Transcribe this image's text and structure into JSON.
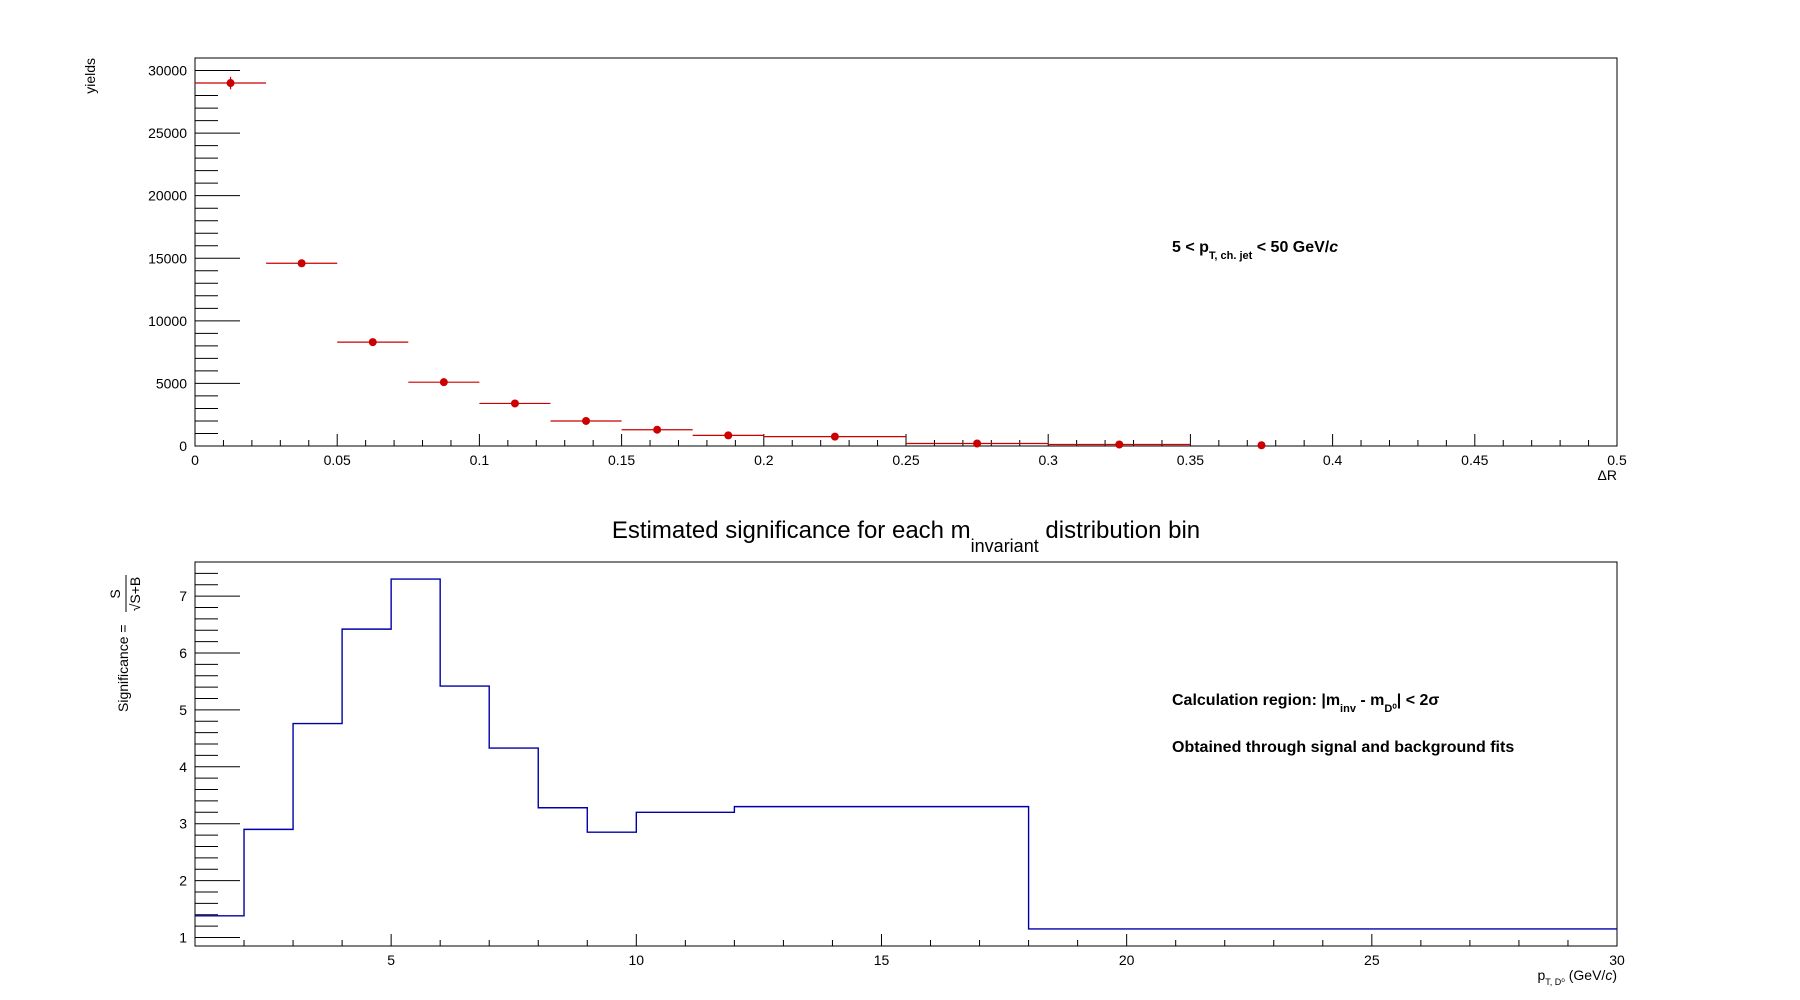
{
  "chart_data": [
    {
      "type": "scatter",
      "title": "",
      "xlabel": "ΔR",
      "ylabel": "yields",
      "xlim": [
        0,
        0.5
      ],
      "ylim": [
        0,
        31000
      ],
      "x_ticks": [
        "0",
        "0.05",
        "0.1",
        "0.15",
        "0.2",
        "0.25",
        "0.3",
        "0.35",
        "0.4",
        "0.45",
        "0.5"
      ],
      "y_ticks": [
        "0",
        "5000",
        "10000",
        "15000",
        "20000",
        "25000",
        "30000"
      ],
      "annotation": {
        "prefix": "5 < p",
        "sub": "T, ch. jet",
        "suffix": " < 50 GeV/",
        "italic": "c"
      },
      "color": "#cc0000",
      "points": [
        {
          "x": 0.0125,
          "y": 29000,
          "xerr": 0.0125,
          "yerr": 500
        },
        {
          "x": 0.0375,
          "y": 14600,
          "xerr": 0.0125,
          "yerr": 200
        },
        {
          "x": 0.0625,
          "y": 8300,
          "xerr": 0.0125,
          "yerr": 150
        },
        {
          "x": 0.0875,
          "y": 5100,
          "xerr": 0.0125,
          "yerr": 100
        },
        {
          "x": 0.1125,
          "y": 3400,
          "xerr": 0.0125,
          "yerr": 80
        },
        {
          "x": 0.1375,
          "y": 2000,
          "xerr": 0.0125,
          "yerr": 60
        },
        {
          "x": 0.1625,
          "y": 1300,
          "xerr": 0.0125,
          "yerr": 50
        },
        {
          "x": 0.1875,
          "y": 850,
          "xerr": 0.0125,
          "yerr": 40
        },
        {
          "x": 0.225,
          "y": 750,
          "xerr": 0.025,
          "yerr": 40
        },
        {
          "x": 0.275,
          "y": 200,
          "xerr": 0.025,
          "yerr": 20
        },
        {
          "x": 0.325,
          "y": 120,
          "xerr": 0.025,
          "yerr": 20
        },
        {
          "x": 0.375,
          "y": 60,
          "xerr": 0.0,
          "yerr": 10
        }
      ]
    },
    {
      "type": "line",
      "title_prefix": "Estimated significance for each m",
      "title_sub": "invariant",
      "title_suffix": " distribution bin",
      "xlabel_prefix": "p",
      "xlabel_sub": "T, D⁰",
      "xlabel_suffix": " (GeV/",
      "xlabel_italic": "c",
      "xlabel_close": ")",
      "ylabel_prefix": "Significance = ",
      "ylabel_num": "S",
      "ylabel_den": "√S+B",
      "xlim": [
        1,
        30
      ],
      "ylim": [
        0.85,
        7.6
      ],
      "x_ticks": [
        "5",
        "10",
        "15",
        "20",
        "25",
        "30"
      ],
      "y_ticks": [
        "1",
        "2",
        "3",
        "4",
        "5",
        "6",
        "7"
      ],
      "annotation1": {
        "prefix": "Calculation region: |m",
        "sub1": "inv",
        "mid": " - m",
        "sub2": "D⁰",
        "suffix": "| < 2σ"
      },
      "annotation2": "Obtained through signal and background fits",
      "color": "#0000aa",
      "bins": [
        {
          "x0": 1,
          "x1": 2,
          "y": 1.38
        },
        {
          "x0": 2,
          "x1": 3,
          "y": 2.9
        },
        {
          "x0": 3,
          "x1": 4,
          "y": 4.76
        },
        {
          "x0": 4,
          "x1": 5,
          "y": 6.42
        },
        {
          "x0": 5,
          "x1": 6,
          "y": 7.3
        },
        {
          "x0": 6,
          "x1": 7,
          "y": 5.42
        },
        {
          "x0": 7,
          "x1": 8,
          "y": 4.33
        },
        {
          "x0": 8,
          "x1": 9,
          "y": 3.28
        },
        {
          "x0": 9,
          "x1": 10,
          "y": 2.85
        },
        {
          "x0": 10,
          "x1": 12,
          "y": 3.2
        },
        {
          "x0": 12,
          "x1": 18,
          "y": 3.3
        },
        {
          "x0": 18,
          "x1": 30,
          "y": 1.15
        }
      ]
    }
  ]
}
